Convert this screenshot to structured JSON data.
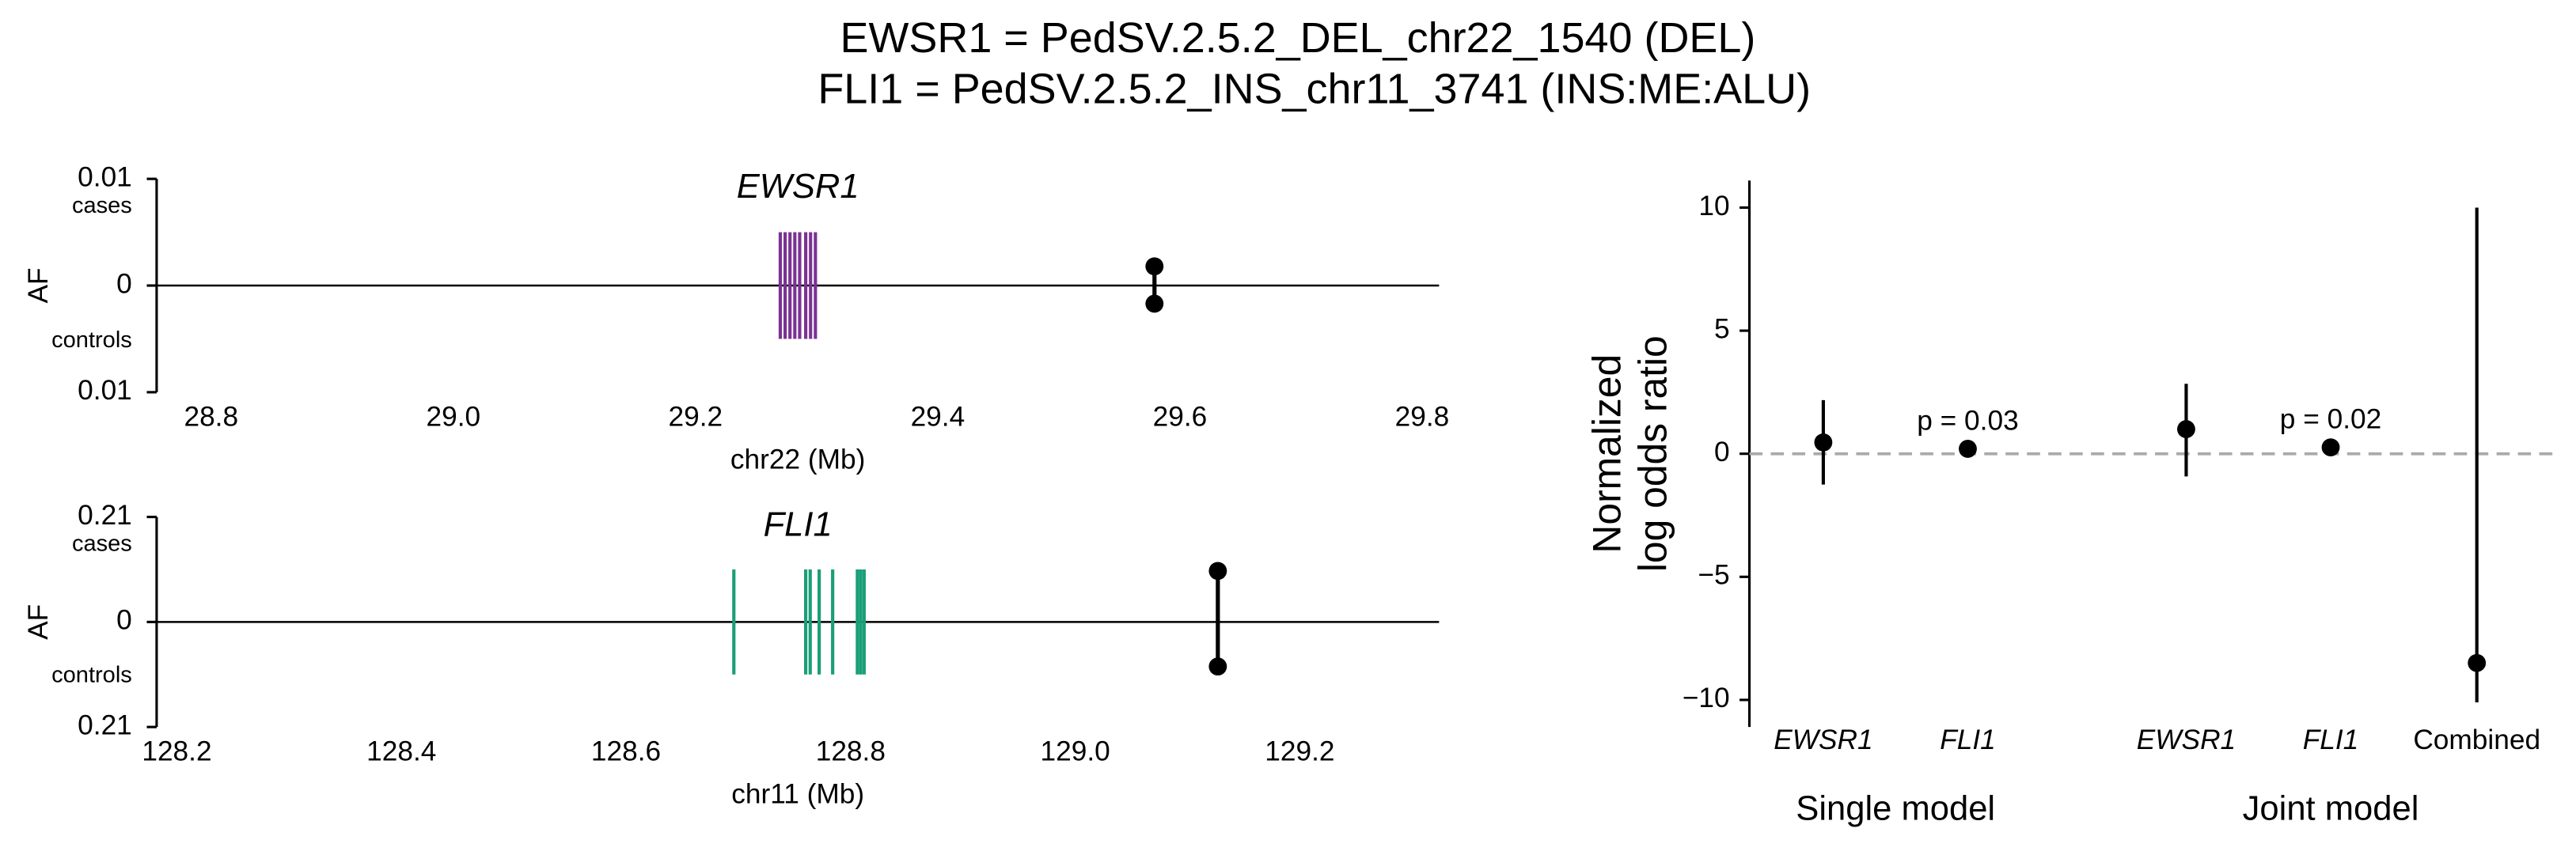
{
  "title": [
    "EWSR1 = PedSV.2.5.2_DEL_chr22_1540 (DEL)",
    "FLI1 = PedSV.2.5.2_INS_chr11_3741 (INS:ME:ALU)"
  ],
  "chart_data": [
    {
      "type": "gene-track",
      "title": "EWSR1",
      "xlabel": "chr22 (Mb)",
      "ylabel": "AF",
      "xlim": [
        28.755,
        29.814
      ],
      "xticks": [
        28.8,
        {
          "value": 29,
          "label": "29.0"
        },
        29.2,
        29.4,
        29.6,
        29.8
      ],
      "ylim": [
        -0.01,
        0.01
      ],
      "yticks": [
        {
          "value": -0.01,
          "label": "0.01"
        },
        0,
        0.01
      ],
      "group_labels": [
        "cases",
        "controls"
      ],
      "exon_color": "#7b3294",
      "exons": [
        29.27,
        29.274,
        29.278,
        29.282,
        29.286,
        29.291,
        29.295,
        29.299
      ],
      "variant": {
        "x": 29.579,
        "cases": 0.0018,
        "controls": 0.0017
      }
    },
    {
      "type": "gene-track",
      "title": "FLI1",
      "xlabel": "chr11 (Mb)",
      "ylabel": "AF",
      "xlim": [
        128.182,
        129.324
      ],
      "xticks": [
        128.2,
        128.4,
        128.6,
        128.8,
        {
          "value": 129,
          "label": "129.0"
        },
        129.2
      ],
      "ylim": [
        -0.21,
        0.21
      ],
      "yticks": [
        {
          "value": -0.21,
          "label": "0.21"
        },
        0,
        0.21
      ],
      "group_labels": [
        "cases",
        "controls"
      ],
      "exon_color": "#1a9e77",
      "exons": [
        128.696,
        128.76,
        128.764,
        128.772,
        128.784,
        128.806,
        128.809,
        128.812
      ],
      "variant": {
        "x": 129.127,
        "cases": 0.102,
        "controls": 0.089
      }
    },
    {
      "type": "forest",
      "ylabel": [
        "Normalized",
        "log odds ratio"
      ],
      "ylim": [
        -11.1,
        11.1
      ],
      "yticks": [
        {
          "value": -10,
          "label": "−10"
        },
        {
          "value": -5,
          "label": "−5"
        },
        0,
        5,
        10
      ],
      "categories": [
        "EWSR1",
        "FLI1",
        "EWSR1",
        "FLI1",
        "Combined"
      ],
      "groups": [
        "Single model",
        "Joint model"
      ],
      "values": [
        0.46,
        0.2,
        1.0,
        0.26,
        -8.5
      ],
      "lower": [
        -1.25,
        null,
        -0.92,
        null,
        -10.1
      ],
      "upper": [
        2.18,
        null,
        2.84,
        null,
        10.0
      ],
      "p_labels": [
        null,
        "p = 0.03",
        null,
        "p = 0.02",
        null
      ],
      "reference_line": 0
    }
  ]
}
